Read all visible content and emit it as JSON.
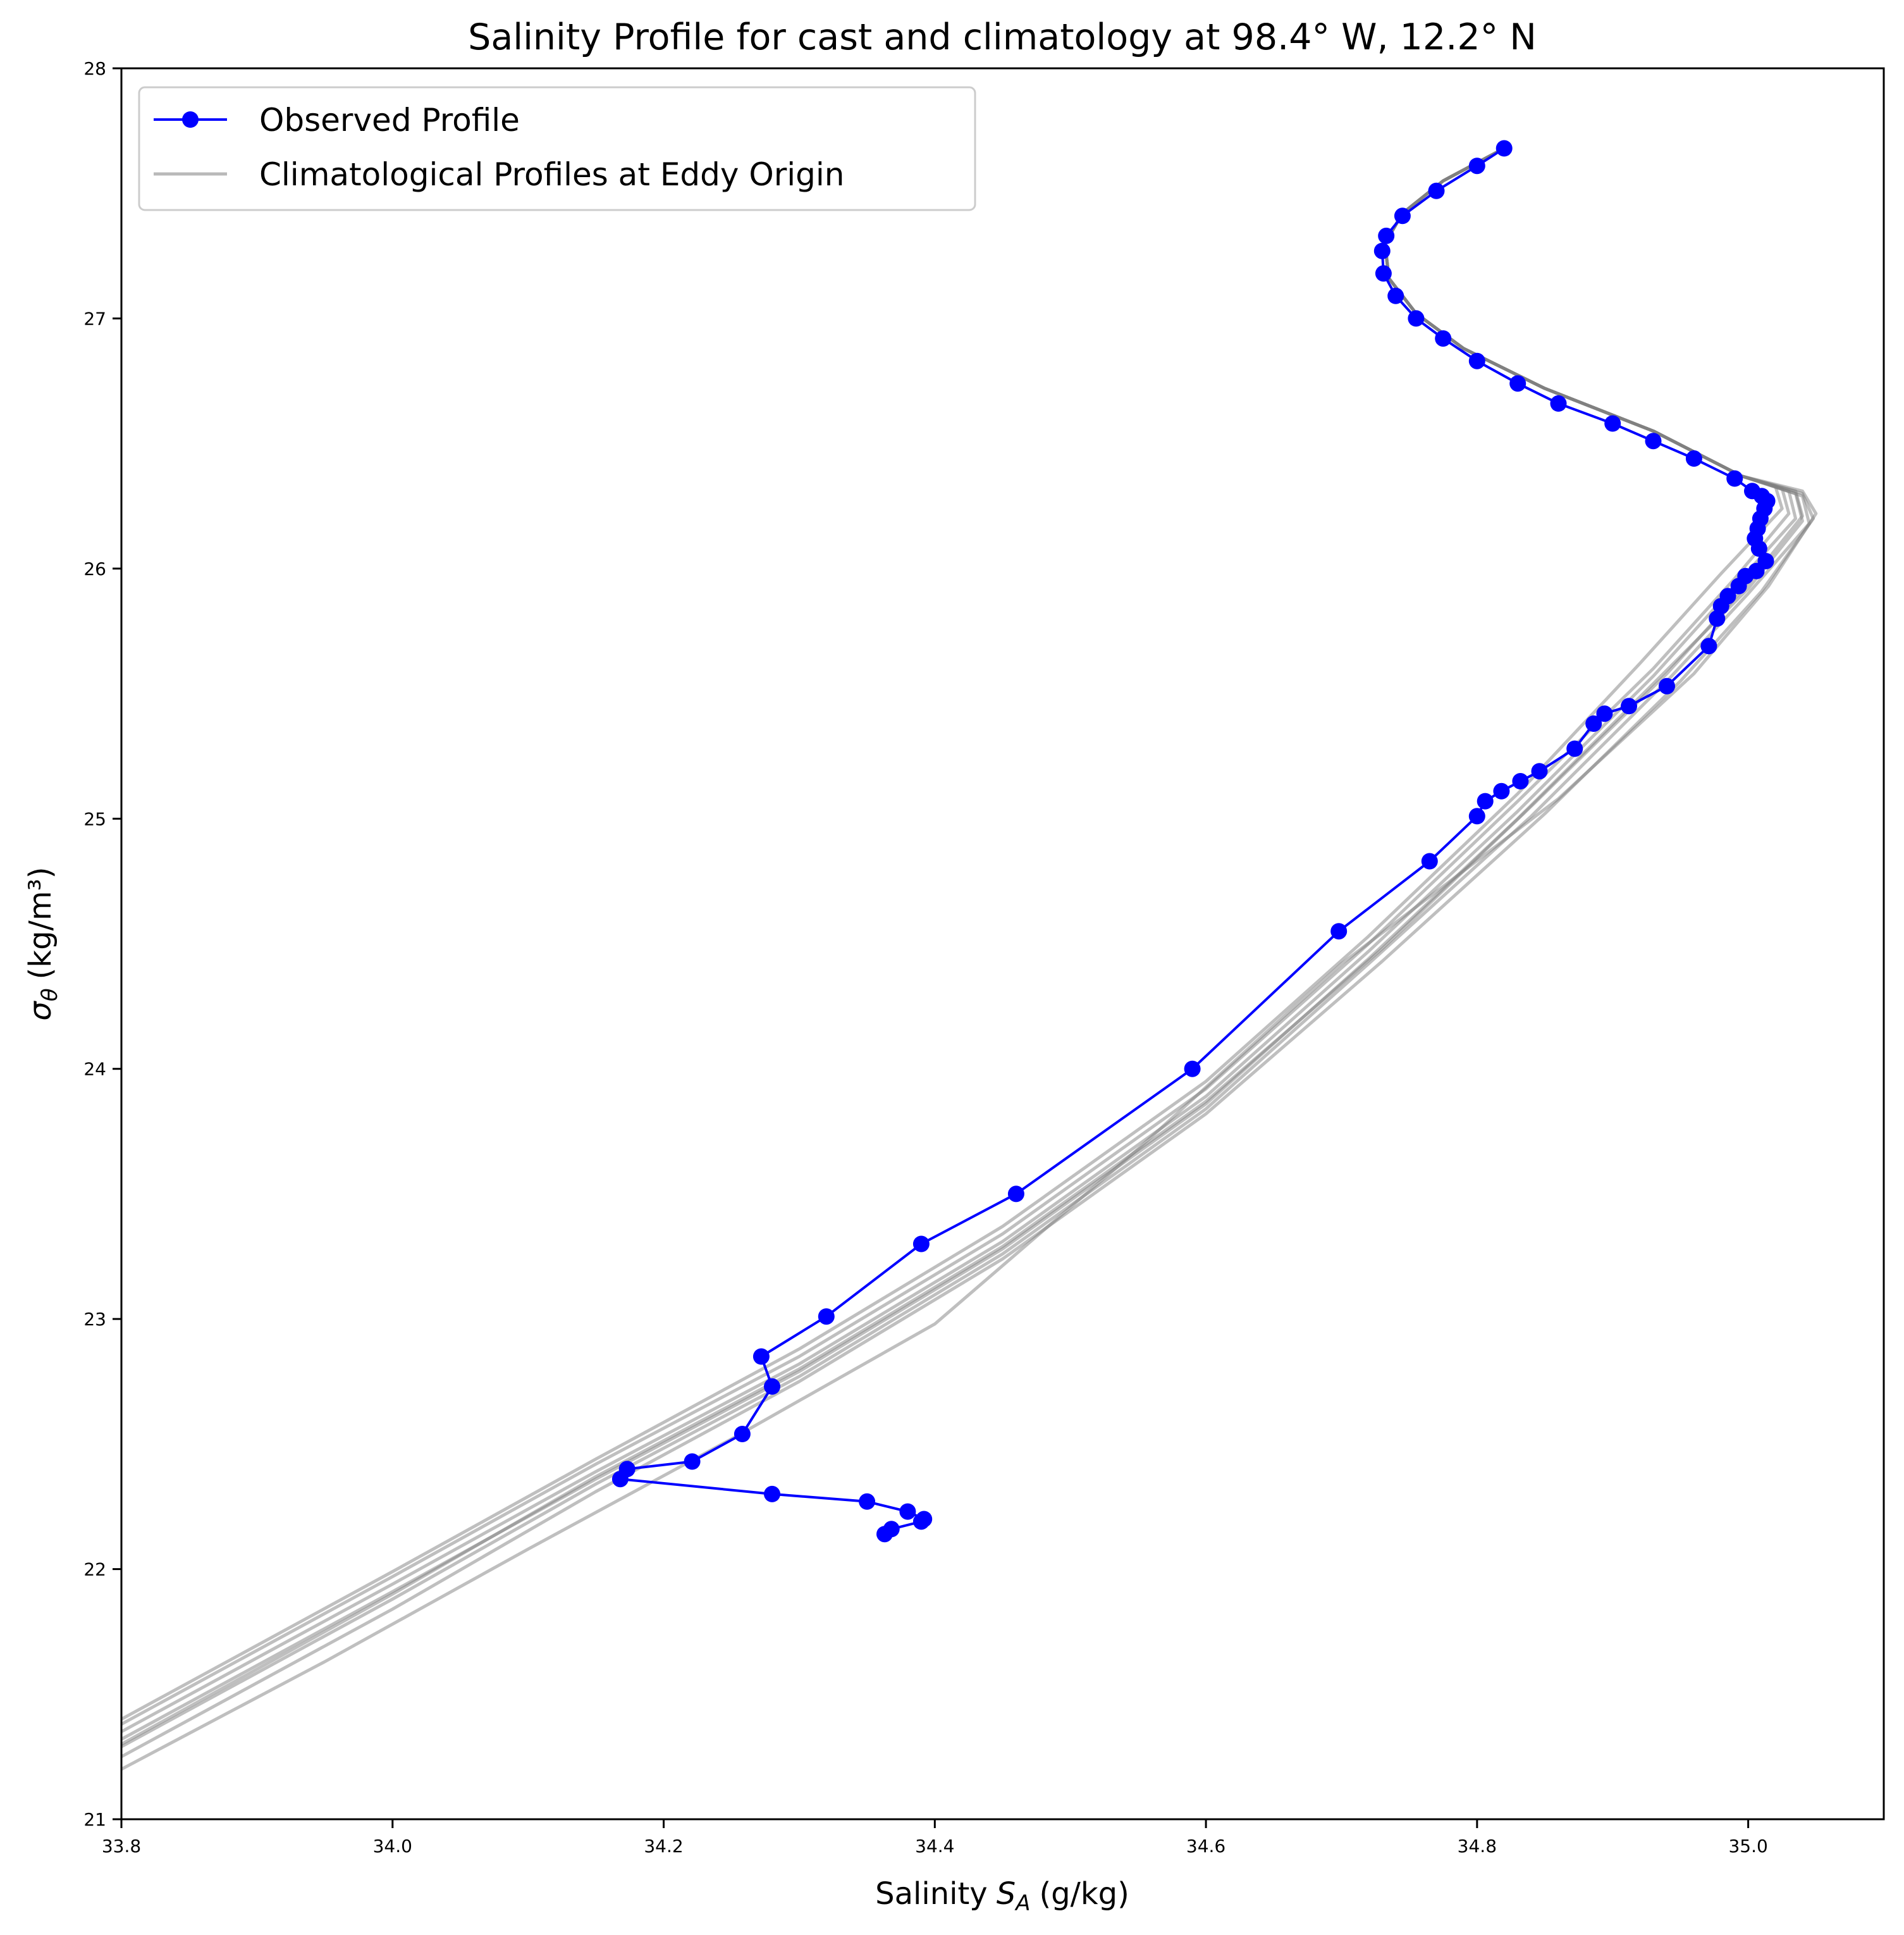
{
  "chart_data": {
    "type": "line",
    "title": "Salinity Profile for cast and climatology at 98.4° W, 12.2° N",
    "xlabel": "Salinity",
    "xlabel_symbol": "S",
    "xlabel_subscript": "A",
    "xlabel_unit": "(g/kg)",
    "ylabel": "σ",
    "ylabel_subscript": "θ",
    "ylabel_unit": "(kg/m³)",
    "xlim": [
      33.8,
      35.1
    ],
    "ylim": [
      21,
      28
    ],
    "xticks": [
      "33.8",
      "34.0",
      "34.2",
      "34.4",
      "34.6",
      "34.8",
      "35.0"
    ],
    "yticks": [
      "21",
      "22",
      "23",
      "24",
      "25",
      "26",
      "27",
      "28"
    ],
    "grid": false,
    "legend": {
      "placement": "upper-left",
      "entries": [
        "Observed Profile",
        "Climatological Profiles at Eddy Origin"
      ]
    },
    "colors": {
      "observed": "#0000ff",
      "climatology": "#808080"
    },
    "series": [
      {
        "name": "Observed Profile",
        "marker": "circle",
        "points": [
          [
            34.363,
            22.14
          ],
          [
            34.368,
            22.16
          ],
          [
            34.39,
            22.19
          ],
          [
            34.392,
            22.2
          ],
          [
            34.38,
            22.23
          ],
          [
            34.35,
            22.27
          ],
          [
            34.28,
            22.3
          ],
          [
            34.168,
            22.36
          ],
          [
            34.173,
            22.4
          ],
          [
            34.221,
            22.43
          ],
          [
            34.258,
            22.54
          ],
          [
            34.28,
            22.73
          ],
          [
            34.272,
            22.85
          ],
          [
            34.32,
            23.01
          ],
          [
            34.39,
            23.3
          ],
          [
            34.46,
            23.5
          ],
          [
            34.59,
            24.0
          ],
          [
            34.698,
            24.55
          ],
          [
            34.765,
            24.83
          ],
          [
            34.8,
            25.01
          ],
          [
            34.806,
            25.07
          ],
          [
            34.818,
            25.11
          ],
          [
            34.832,
            25.15
          ],
          [
            34.846,
            25.19
          ],
          [
            34.872,
            25.28
          ],
          [
            34.886,
            25.38
          ],
          [
            34.894,
            25.42
          ],
          [
            34.912,
            25.45
          ],
          [
            34.94,
            25.53
          ],
          [
            34.971,
            25.69
          ],
          [
            34.977,
            25.8
          ],
          [
            34.98,
            25.85
          ],
          [
            34.985,
            25.89
          ],
          [
            34.993,
            25.93
          ],
          [
            34.998,
            25.97
          ],
          [
            35.006,
            25.99
          ],
          [
            35.013,
            26.03
          ],
          [
            35.008,
            26.08
          ],
          [
            35.005,
            26.12
          ],
          [
            35.007,
            26.16
          ],
          [
            35.009,
            26.2
          ],
          [
            35.012,
            26.24
          ],
          [
            35.014,
            26.27
          ],
          [
            35.01,
            26.29
          ],
          [
            35.003,
            26.31
          ],
          [
            34.99,
            26.36
          ],
          [
            34.96,
            26.44
          ],
          [
            34.93,
            26.51
          ],
          [
            34.9,
            26.58
          ],
          [
            34.86,
            26.66
          ],
          [
            34.83,
            26.74
          ],
          [
            34.8,
            26.83
          ],
          [
            34.775,
            26.92
          ],
          [
            34.755,
            27.0
          ],
          [
            34.74,
            27.09
          ],
          [
            34.731,
            27.18
          ],
          [
            34.73,
            27.27
          ],
          [
            34.733,
            27.33
          ],
          [
            34.745,
            27.41
          ],
          [
            34.77,
            27.51
          ],
          [
            34.8,
            27.61
          ],
          [
            34.82,
            27.68
          ]
        ]
      },
      {
        "name": "Climatological Profiles at Eddy Origin",
        "profiles": [
          [
            [
              33.8,
              21.38
            ],
            [
              34.0,
              21.97
            ],
            [
              34.15,
              22.42
            ],
            [
              34.3,
              22.85
            ],
            [
              34.45,
              23.34
            ],
            [
              34.6,
              23.92
            ],
            [
              34.72,
              24.5
            ],
            [
              34.83,
              25.07
            ],
            [
              34.93,
              25.6
            ],
            [
              34.99,
              25.96
            ],
            [
              35.03,
              26.22
            ],
            [
              35.025,
              26.32
            ],
            [
              34.995,
              26.37
            ],
            [
              34.93,
              26.55
            ],
            [
              34.85,
              26.72
            ],
            [
              34.79,
              26.88
            ],
            [
              34.755,
              27.02
            ],
            [
              34.735,
              27.16
            ],
            [
              34.732,
              27.3
            ],
            [
              34.745,
              27.42
            ],
            [
              34.775,
              27.55
            ],
            [
              34.82,
              27.68
            ]
          ],
          [
            [
              33.8,
              21.35
            ],
            [
              34.0,
              21.94
            ],
            [
              34.15,
              22.39
            ],
            [
              34.3,
              22.82
            ],
            [
              34.45,
              23.31
            ],
            [
              34.6,
              23.89
            ],
            [
              34.72,
              24.47
            ],
            [
              34.83,
              25.03
            ],
            [
              34.93,
              25.57
            ],
            [
              34.99,
              25.93
            ],
            [
              35.035,
              26.2
            ],
            [
              35.03,
              26.31
            ],
            [
              34.995,
              26.37
            ],
            [
              34.93,
              26.55
            ],
            [
              34.85,
              26.72
            ],
            [
              34.79,
              26.88
            ],
            [
              34.755,
              27.02
            ],
            [
              34.735,
              27.16
            ],
            [
              34.732,
              27.3
            ],
            [
              34.745,
              27.42
            ],
            [
              34.775,
              27.55
            ],
            [
              34.82,
              27.68
            ]
          ],
          [
            [
              33.8,
              21.32
            ],
            [
              34.0,
              21.91
            ],
            [
              34.15,
              22.36
            ],
            [
              34.3,
              22.79
            ],
            [
              34.45,
              23.28
            ],
            [
              34.6,
              23.86
            ],
            [
              34.72,
              24.44
            ],
            [
              34.83,
              25.0
            ],
            [
              34.93,
              25.54
            ],
            [
              35.0,
              25.92
            ],
            [
              35.04,
              26.19
            ],
            [
              35.035,
              26.3
            ],
            [
              34.995,
              26.37
            ],
            [
              34.93,
              26.55
            ],
            [
              34.85,
              26.72
            ],
            [
              34.79,
              26.88
            ],
            [
              34.755,
              27.02
            ],
            [
              34.735,
              27.16
            ],
            [
              34.732,
              27.3
            ],
            [
              34.745,
              27.42
            ],
            [
              34.775,
              27.55
            ],
            [
              34.82,
              27.68
            ]
          ],
          [
            [
              33.8,
              21.29
            ],
            [
              34.0,
              21.88
            ],
            [
              34.15,
              22.34
            ],
            [
              34.3,
              22.77
            ],
            [
              34.45,
              23.26
            ],
            [
              34.6,
              23.84
            ],
            [
              34.72,
              24.42
            ],
            [
              34.84,
              25.01
            ],
            [
              34.94,
              25.55
            ],
            [
              35.0,
              25.9
            ],
            [
              35.045,
              26.18
            ],
            [
              35.04,
              26.29
            ],
            [
              34.995,
              26.37
            ],
            [
              34.93,
              26.55
            ],
            [
              34.85,
              26.72
            ],
            [
              34.79,
              26.88
            ],
            [
              34.755,
              27.02
            ],
            [
              34.735,
              27.16
            ],
            [
              34.732,
              27.3
            ],
            [
              34.745,
              27.42
            ],
            [
              34.775,
              27.55
            ],
            [
              34.82,
              27.68
            ]
          ],
          [
            [
              33.8,
              21.25
            ],
            [
              34.0,
              21.84
            ],
            [
              34.15,
              22.31
            ],
            [
              34.3,
              22.75
            ],
            [
              34.45,
              23.24
            ],
            [
              34.6,
              23.82
            ],
            [
              34.73,
              24.43
            ],
            [
              34.85,
              25.02
            ],
            [
              34.95,
              25.55
            ],
            [
              35.01,
              25.91
            ],
            [
              35.048,
              26.2
            ],
            [
              35.04,
              26.3
            ],
            [
              34.995,
              26.37
            ],
            [
              34.93,
              26.55
            ],
            [
              34.85,
              26.72
            ],
            [
              34.79,
              26.88
            ],
            [
              34.755,
              27.02
            ],
            [
              34.735,
              27.16
            ],
            [
              34.732,
              27.3
            ],
            [
              34.745,
              27.42
            ],
            [
              34.775,
              27.55
            ],
            [
              34.82,
              27.68
            ]
          ],
          [
            [
              33.8,
              21.2
            ],
            [
              33.95,
              21.63
            ],
            [
              34.1,
              22.08
            ],
            [
              34.25,
              22.52
            ],
            [
              34.4,
              22.98
            ],
            [
              34.55,
              23.68
            ],
            [
              34.7,
              24.42
            ],
            [
              34.86,
              25.08
            ],
            [
              34.96,
              25.58
            ],
            [
              35.015,
              25.93
            ],
            [
              35.05,
              26.22
            ],
            [
              35.04,
              26.31
            ],
            [
              34.995,
              26.37
            ],
            [
              34.93,
              26.55
            ],
            [
              34.85,
              26.72
            ],
            [
              34.79,
              26.88
            ],
            [
              34.755,
              27.02
            ],
            [
              34.735,
              27.16
            ],
            [
              34.732,
              27.3
            ],
            [
              34.745,
              27.42
            ],
            [
              34.775,
              27.55
            ],
            [
              34.82,
              27.68
            ]
          ],
          [
            [
              33.8,
              21.4
            ],
            [
              34.0,
              21.99
            ],
            [
              34.15,
              22.44
            ],
            [
              34.3,
              22.88
            ],
            [
              34.45,
              23.37
            ],
            [
              34.6,
              23.95
            ],
            [
              34.72,
              24.53
            ],
            [
              34.83,
              25.1
            ],
            [
              34.92,
              25.62
            ],
            [
              34.98,
              25.98
            ],
            [
              35.025,
              26.24
            ],
            [
              35.02,
              26.33
            ],
            [
              34.995,
              26.37
            ],
            [
              34.93,
              26.55
            ],
            [
              34.85,
              26.72
            ],
            [
              34.79,
              26.88
            ],
            [
              34.755,
              27.02
            ],
            [
              34.735,
              27.16
            ],
            [
              34.732,
              27.3
            ],
            [
              34.745,
              27.42
            ],
            [
              34.775,
              27.55
            ],
            [
              34.82,
              27.68
            ]
          ],
          [
            [
              33.8,
              21.3
            ],
            [
              34.0,
              21.9
            ],
            [
              34.15,
              22.37
            ],
            [
              34.3,
              22.8
            ],
            [
              34.45,
              23.29
            ],
            [
              34.6,
              23.87
            ],
            [
              34.73,
              24.48
            ],
            [
              34.84,
              25.05
            ],
            [
              34.94,
              25.58
            ],
            [
              35.0,
              25.94
            ],
            [
              35.04,
              26.21
            ],
            [
              35.035,
              26.31
            ],
            [
              34.995,
              26.37
            ],
            [
              34.93,
              26.55
            ],
            [
              34.85,
              26.72
            ],
            [
              34.79,
              26.88
            ],
            [
              34.755,
              27.02
            ],
            [
              34.735,
              27.16
            ],
            [
              34.732,
              27.3
            ],
            [
              34.745,
              27.42
            ],
            [
              34.775,
              27.55
            ],
            [
              34.82,
              27.68
            ]
          ]
        ]
      }
    ]
  }
}
